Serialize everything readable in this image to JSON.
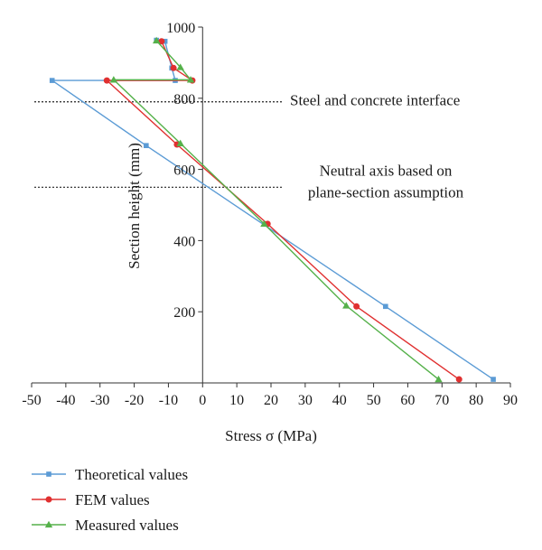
{
  "chart_data": {
    "type": "line",
    "xlabel": "Stress σ (MPa)",
    "ylabel": "Section height (mm)",
    "xlim": [
      -50,
      90
    ],
    "ylim": [
      0,
      1000
    ],
    "xticks": [
      -50,
      -40,
      -30,
      -20,
      -10,
      0,
      10,
      20,
      30,
      40,
      50,
      60,
      70,
      80,
      90
    ],
    "yticks": [
      200,
      400,
      600,
      800,
      1000
    ],
    "grid": false,
    "legend_position": "bottom-left",
    "reference_lines": [
      {
        "label": "Steel and concrete interface",
        "y": 790
      },
      {
        "label_lines": [
          "Neutral axis based on",
          "plane-section assumption"
        ],
        "y": 550
      }
    ],
    "series": [
      {
        "name": "Theoretical values",
        "color": "#5b9bd5",
        "marker": "square",
        "points": [
          [
            85,
            10
          ],
          [
            53.5,
            215
          ],
          [
            -16.5,
            667
          ],
          [
            -44,
            850
          ],
          [
            -8,
            850
          ],
          [
            -9,
            885
          ],
          [
            -11,
            960
          ],
          [
            -13.5,
            963
          ]
        ]
      },
      {
        "name": "FEM values",
        "color": "#e03030",
        "marker": "circle",
        "points": [
          [
            75,
            10
          ],
          [
            45,
            215
          ],
          [
            19,
            447
          ],
          [
            -7.5,
            670
          ],
          [
            -28,
            850
          ],
          [
            -3,
            850
          ],
          [
            -8.5,
            885
          ],
          [
            -12,
            960
          ]
        ]
      },
      {
        "name": "Measured values",
        "color": "#55b14a",
        "marker": "triangle",
        "points": [
          [
            69,
            10
          ],
          [
            42,
            217
          ],
          [
            18,
            447
          ],
          [
            -6.5,
            673
          ],
          [
            -26,
            852
          ],
          [
            -3.5,
            852
          ],
          [
            -6.5,
            887
          ],
          [
            -13.5,
            962
          ]
        ]
      }
    ]
  }
}
